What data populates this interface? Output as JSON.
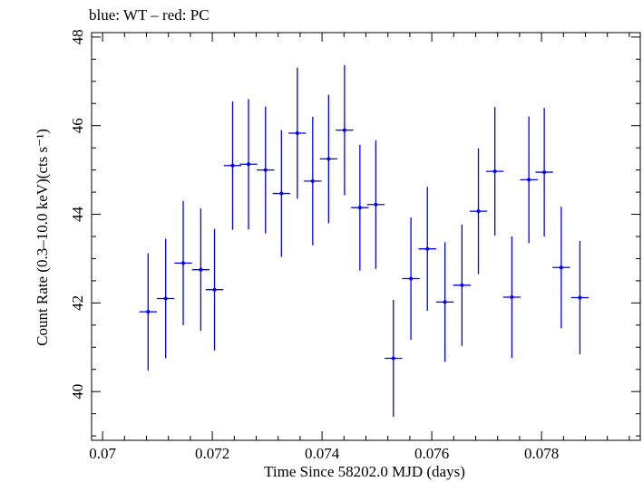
{
  "chart_data": {
    "type": "scatter",
    "title": "blue: WT – red: PC",
    "xlabel": "Time Since 58202.0 MJD (days)",
    "ylabel": "Count Rate (0.3–10.0 keV)(cts s⁻¹)",
    "xlim": [
      0.0698,
      0.0798
    ],
    "ylim": [
      38.9,
      48.1
    ],
    "xticks": [
      0.07,
      0.072,
      0.074,
      0.076,
      0.078
    ],
    "xtick_labels": [
      "0.07",
      "0.072",
      "0.074",
      "0.076",
      "0.078"
    ],
    "yticks": [
      40,
      42,
      44,
      46,
      48
    ],
    "ytick_labels": [
      "40",
      "42",
      "44",
      "46",
      "48"
    ],
    "grid": false,
    "series": [
      {
        "color": "#0000ff",
        "x": [
          0.07083,
          0.07115,
          0.07147,
          0.07179,
          0.07204,
          0.07237,
          0.07266,
          0.07297,
          0.07326,
          0.07355,
          0.07383,
          0.07412,
          0.07441,
          0.07469,
          0.07498,
          0.0753,
          0.07562,
          0.07592,
          0.07624,
          0.07655,
          0.07685,
          0.07715,
          0.07746,
          0.07777,
          0.07805,
          0.07836,
          0.0787
        ],
        "y": [
          41.8,
          42.1,
          42.9,
          42.75,
          42.3,
          45.1,
          45.13,
          45.0,
          44.47,
          45.83,
          44.75,
          45.25,
          45.9,
          44.15,
          44.22,
          40.75,
          42.55,
          43.22,
          42.02,
          42.4,
          44.07,
          44.97,
          42.13,
          44.78,
          44.95,
          42.8,
          42.12
        ],
        "xerr": [
          0.00016,
          0.00016,
          0.00016,
          0.00016,
          0.00016,
          0.00016,
          0.00016,
          0.00016,
          0.00016,
          0.00016,
          0.00016,
          0.00016,
          0.00016,
          0.00016,
          0.00016,
          0.00016,
          0.00016,
          0.00016,
          0.00016,
          0.00016,
          0.00016,
          0.00016,
          0.00016,
          0.00016,
          0.00016,
          0.00016,
          0.00016
        ],
        "yerr": [
          1.32,
          1.35,
          1.4,
          1.38,
          1.37,
          1.45,
          1.47,
          1.43,
          1.43,
          1.48,
          1.45,
          1.45,
          1.47,
          1.42,
          1.45,
          1.32,
          1.38,
          1.4,
          1.35,
          1.37,
          1.42,
          1.45,
          1.37,
          1.43,
          1.45,
          1.37,
          1.28
        ]
      }
    ]
  }
}
